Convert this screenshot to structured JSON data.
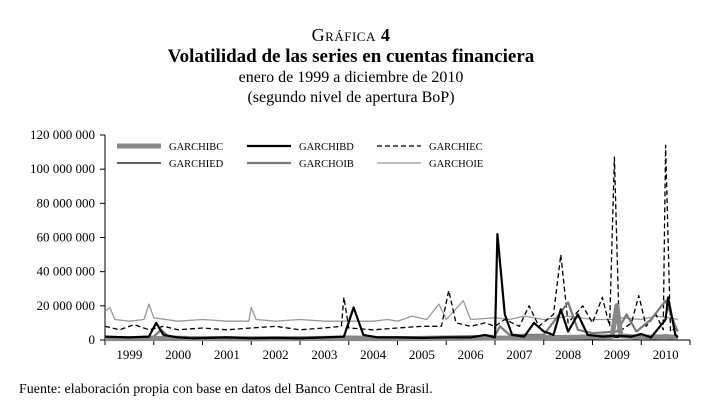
{
  "figure": {
    "heading": "Gráfica",
    "number": "4",
    "title": "Volatilidad de las series en cuentas financiera",
    "subtitle_1": "enero de 1999 a diciembre de 2010",
    "subtitle_2": "(segundo nivel de apertura BoP)",
    "source": "Fuente: elaboración propia con base en datos del Banco Central de Brasil."
  },
  "chart_data": {
    "type": "line",
    "title": "Volatilidad de las series en cuentas financiera",
    "xlabel": "",
    "ylabel": "",
    "x_ticks": [
      "1999",
      "2000",
      "2001",
      "2002",
      "2003",
      "2004",
      "2005",
      "2006",
      "2007",
      "2008",
      "2009",
      "2010"
    ],
    "x_range": [
      1999.0,
      2011.0
    ],
    "y_ticks": [
      0,
      20000000,
      40000000,
      60000000,
      80000000,
      100000000,
      120000000
    ],
    "y_tick_labels": [
      "0",
      "20 000 000",
      "40 000 000",
      "60 000 000",
      "80 000 000",
      "100 000 000",
      "120 000 000"
    ],
    "ylim": [
      0,
      120000000
    ],
    "grid": false,
    "legend_position": "top-left",
    "series": [
      {
        "name": "GARCHIBC",
        "color": "#888888",
        "dash": "solid",
        "width": 5,
        "points": [
          [
            1999.0,
            800000
          ],
          [
            2000.5,
            900000
          ],
          [
            2002.0,
            700000
          ],
          [
            2003.5,
            900000
          ],
          [
            2005.0,
            800000
          ],
          [
            2006.5,
            1000000
          ],
          [
            2007.5,
            1200000
          ],
          [
            2008.5,
            1500000
          ],
          [
            2009.4,
            2000000
          ],
          [
            2009.5,
            20000000
          ],
          [
            2009.58,
            2500000
          ],
          [
            2010.0,
            1500000
          ],
          [
            2010.5,
            2000000
          ],
          [
            2010.75,
            1500000
          ]
        ]
      },
      {
        "name": "GARCHIBD",
        "color": "#000000",
        "dash": "solid",
        "width": 2.2,
        "points": [
          [
            1999.0,
            2000000
          ],
          [
            1999.5,
            1500000
          ],
          [
            1999.9,
            2000000
          ],
          [
            2000.05,
            10000000
          ],
          [
            2000.2,
            3000000
          ],
          [
            2000.5,
            1500000
          ],
          [
            2000.8,
            1000000
          ],
          [
            2001.5,
            1500000
          ],
          [
            2002.0,
            1000000
          ],
          [
            2002.5,
            1200000
          ],
          [
            2003.0,
            1000000
          ],
          [
            2003.5,
            1500000
          ],
          [
            2003.9,
            2000000
          ],
          [
            2004.1,
            19000000
          ],
          [
            2004.3,
            3000000
          ],
          [
            2004.6,
            1500000
          ],
          [
            2005.0,
            1500000
          ],
          [
            2005.5,
            1200000
          ],
          [
            2006.0,
            1500000
          ],
          [
            2006.5,
            1500000
          ],
          [
            2006.8,
            3000000
          ],
          [
            2007.0,
            1500000
          ],
          [
            2007.05,
            62000000
          ],
          [
            2007.2,
            15000000
          ],
          [
            2007.35,
            3000000
          ],
          [
            2007.6,
            2000000
          ],
          [
            2007.8,
            10000000
          ],
          [
            2008.0,
            5000000
          ],
          [
            2008.2,
            3000000
          ],
          [
            2008.35,
            18000000
          ],
          [
            2008.5,
            5000000
          ],
          [
            2008.7,
            15000000
          ],
          [
            2008.9,
            3000000
          ],
          [
            2009.2,
            2000000
          ],
          [
            2009.5,
            2500000
          ],
          [
            2009.8,
            2000000
          ],
          [
            2010.0,
            3500000
          ],
          [
            2010.2,
            1500000
          ],
          [
            2010.5,
            12000000
          ],
          [
            2010.55,
            25000000
          ],
          [
            2010.7,
            3000000
          ],
          [
            2010.75,
            1500000
          ]
        ]
      },
      {
        "name": "GARCHIEC",
        "color": "#000000",
        "dash": "dashed",
        "width": 1.3,
        "points": [
          [
            1999.0,
            8000000
          ],
          [
            1999.3,
            6000000
          ],
          [
            1999.6,
            9000000
          ],
          [
            1999.9,
            6000000
          ],
          [
            2000.2,
            8000000
          ],
          [
            2000.5,
            6000000
          ],
          [
            2001.0,
            7000000
          ],
          [
            2001.5,
            6000000
          ],
          [
            2002.0,
            7000000
          ],
          [
            2002.5,
            8000000
          ],
          [
            2003.0,
            6000000
          ],
          [
            2003.5,
            7000000
          ],
          [
            2003.85,
            8000000
          ],
          [
            2003.9,
            25000000
          ],
          [
            2004.0,
            7000000
          ],
          [
            2004.5,
            6000000
          ],
          [
            2005.0,
            7000000
          ],
          [
            2005.5,
            8000000
          ],
          [
            2005.9,
            8000000
          ],
          [
            2006.05,
            29000000
          ],
          [
            2006.2,
            10000000
          ],
          [
            2006.5,
            8000000
          ],
          [
            2006.8,
            10000000
          ],
          [
            2007.0,
            8000000
          ],
          [
            2007.2,
            12000000
          ],
          [
            2007.5,
            8000000
          ],
          [
            2007.7,
            20000000
          ],
          [
            2007.9,
            8000000
          ],
          [
            2008.2,
            15000000
          ],
          [
            2008.35,
            50000000
          ],
          [
            2008.5,
            10000000
          ],
          [
            2008.8,
            20000000
          ],
          [
            2009.0,
            10000000
          ],
          [
            2009.2,
            25000000
          ],
          [
            2009.35,
            8000000
          ],
          [
            2009.45,
            107000000
          ],
          [
            2009.55,
            5000000
          ],
          [
            2009.8,
            10000000
          ],
          [
            2009.95,
            26000000
          ],
          [
            2010.1,
            8000000
          ],
          [
            2010.3,
            15000000
          ],
          [
            2010.45,
            6000000
          ],
          [
            2010.5,
            114000000
          ],
          [
            2010.6,
            5000000
          ],
          [
            2010.75,
            8000000
          ]
        ]
      },
      {
        "name": "GARCHIED",
        "color": "#000000",
        "dash": "solid",
        "width": 1.3,
        "points": [
          [
            1999.0,
            500000
          ],
          [
            2000.0,
            800000
          ],
          [
            2001.0,
            500000
          ],
          [
            2002.0,
            600000
          ],
          [
            2003.0,
            500000
          ],
          [
            2004.0,
            700000
          ],
          [
            2005.0,
            500000
          ],
          [
            2006.0,
            700000
          ],
          [
            2007.0,
            1000000
          ],
          [
            2007.5,
            1500000
          ],
          [
            2008.0,
            1000000
          ],
          [
            2008.5,
            1200000
          ],
          [
            2009.0,
            800000
          ],
          [
            2009.5,
            1500000
          ],
          [
            2010.0,
            1000000
          ],
          [
            2010.5,
            2000000
          ],
          [
            2010.75,
            1000000
          ]
        ]
      },
      {
        "name": "GARCHOIB",
        "color": "#7a7a7a",
        "dash": "solid",
        "width": 2.2,
        "points": [
          [
            1999.0,
            1000000
          ],
          [
            1999.5,
            1500000
          ],
          [
            2000.0,
            2000000
          ],
          [
            2000.15,
            6000000
          ],
          [
            2000.3,
            2000000
          ],
          [
            2001.0,
            1500000
          ],
          [
            2002.0,
            1500000
          ],
          [
            2003.0,
            1500000
          ],
          [
            2004.0,
            2000000
          ],
          [
            2005.0,
            1500000
          ],
          [
            2006.0,
            2000000
          ],
          [
            2007.0,
            2500000
          ],
          [
            2007.1,
            8000000
          ],
          [
            2007.3,
            3000000
          ],
          [
            2008.0,
            3000000
          ],
          [
            2008.5,
            22000000
          ],
          [
            2008.7,
            6000000
          ],
          [
            2009.0,
            4000000
          ],
          [
            2009.5,
            5000000
          ],
          [
            2009.7,
            15000000
          ],
          [
            2009.9,
            5000000
          ],
          [
            2010.2,
            12000000
          ],
          [
            2010.5,
            23000000
          ],
          [
            2010.7,
            8000000
          ],
          [
            2010.75,
            5000000
          ]
        ]
      },
      {
        "name": "GARCHOIE",
        "color": "#999999",
        "dash": "solid",
        "width": 1.3,
        "points": [
          [
            1999.0,
            17000000
          ],
          [
            1999.1,
            19000000
          ],
          [
            1999.2,
            12000000
          ],
          [
            1999.5,
            11000000
          ],
          [
            1999.8,
            12000000
          ],
          [
            1999.9,
            21000000
          ],
          [
            2000.0,
            13000000
          ],
          [
            2000.5,
            11000000
          ],
          [
            2001.0,
            12000000
          ],
          [
            2001.5,
            11000000
          ],
          [
            2001.95,
            11000000
          ],
          [
            2002.0,
            19000000
          ],
          [
            2002.1,
            12000000
          ],
          [
            2002.5,
            11000000
          ],
          [
            2003.0,
            12000000
          ],
          [
            2003.5,
            11000000
          ],
          [
            2004.0,
            11000000
          ],
          [
            2004.5,
            11000000
          ],
          [
            2004.8,
            12000000
          ],
          [
            2005.0,
            11000000
          ],
          [
            2005.3,
            14000000
          ],
          [
            2005.6,
            12000000
          ],
          [
            2005.85,
            21000000
          ],
          [
            2006.0,
            12000000
          ],
          [
            2006.35,
            23000000
          ],
          [
            2006.5,
            12000000
          ],
          [
            2007.0,
            13000000
          ],
          [
            2007.3,
            12000000
          ],
          [
            2007.6,
            14000000
          ],
          [
            2008.0,
            12000000
          ],
          [
            2008.3,
            13000000
          ],
          [
            2008.5,
            14000000
          ],
          [
            2009.0,
            12000000
          ],
          [
            2009.4,
            12000000
          ],
          [
            2009.6,
            13000000
          ],
          [
            2010.0,
            12000000
          ],
          [
            2010.3,
            14000000
          ],
          [
            2010.6,
            13000000
          ],
          [
            2010.75,
            12000000
          ]
        ]
      }
    ]
  }
}
